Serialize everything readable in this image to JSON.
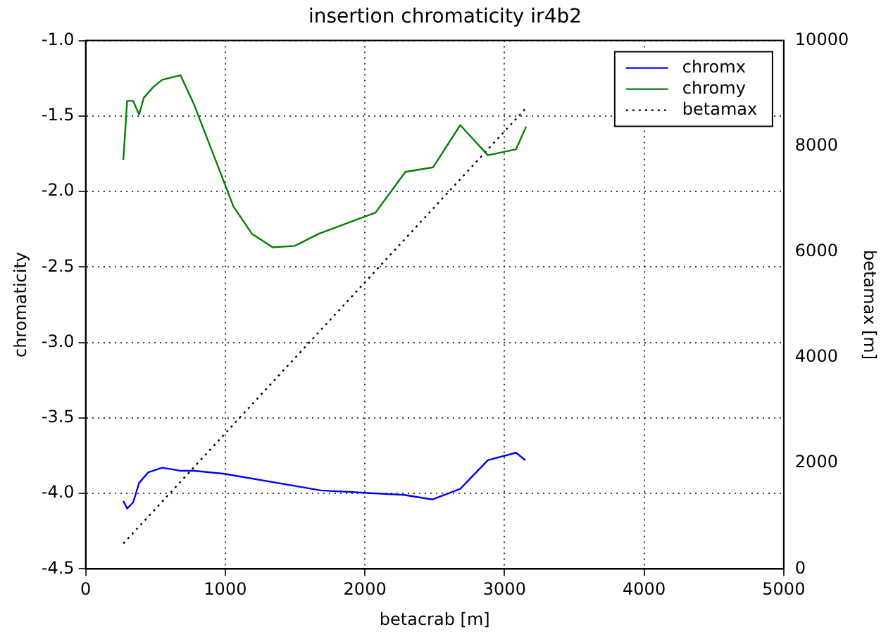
{
  "chart_data": {
    "type": "line",
    "title": "insertion chromaticity ir4b2",
    "xlabel": "betacrab [m]",
    "ylabel": "chromaticity",
    "y2label": "betamax [m]",
    "xlim": [
      0,
      5000
    ],
    "xticks": [
      0,
      1000,
      2000,
      3000,
      4000,
      5000
    ],
    "ylim": [
      -4.5,
      -1.0
    ],
    "yticks": [
      {
        "value": -4.5,
        "label": "-4.5"
      },
      {
        "value": -4.0,
        "label": "-4.0"
      },
      {
        "value": -3.5,
        "label": "-3.5"
      },
      {
        "value": -3.0,
        "label": "-3.0"
      },
      {
        "value": -2.5,
        "label": "-2.5"
      },
      {
        "value": -2.0,
        "label": "-2.0"
      },
      {
        "value": -1.5,
        "label": "-1.5"
      },
      {
        "value": -1.0,
        "label": "-1.0"
      }
    ],
    "y2lim": [
      0,
      10000
    ],
    "y2ticks": [
      0,
      2000,
      4000,
      6000,
      8000,
      10000
    ],
    "grid": true,
    "legend": "top right",
    "marker": "none",
    "series": [
      {
        "name": "chromx",
        "color": "#0000ff",
        "line_style": "solid",
        "x": [
          270,
          297,
          340,
          383,
          449,
          548,
          680,
          779,
          993,
          1686,
          2280,
          2485,
          2683,
          2881,
          3083,
          3149
        ],
        "values": [
          -4.05,
          -4.1,
          -4.06,
          -3.93,
          -3.86,
          -3.83,
          -3.85,
          -3.85,
          -3.87,
          -3.98,
          -4.01,
          -4.04,
          -3.97,
          -3.78,
          -3.73,
          -3.78
        ]
      },
      {
        "name": "chromy",
        "color": "#008000",
        "line_style": "solid",
        "x": [
          270,
          297,
          340,
          383,
          416,
          482,
          548,
          680,
          779,
          1059,
          1191,
          1340,
          1498,
          1670,
          2076,
          2290,
          2488,
          2683,
          2881,
          3083,
          3155
        ],
        "values": [
          -1.79,
          -1.4,
          -1.4,
          -1.49,
          -1.38,
          -1.31,
          -1.26,
          -1.23,
          -1.43,
          -2.1,
          -2.28,
          -2.37,
          -2.36,
          -2.28,
          -2.14,
          -1.87,
          -1.84,
          -1.56,
          -1.76,
          -1.72,
          -1.57
        ]
      },
      {
        "name": "betamax",
        "color": "#000000",
        "line_style": "dotted",
        "axis": "y2",
        "x": [
          270,
          3150
        ],
        "values": [
          480,
          8710
        ]
      }
    ]
  }
}
